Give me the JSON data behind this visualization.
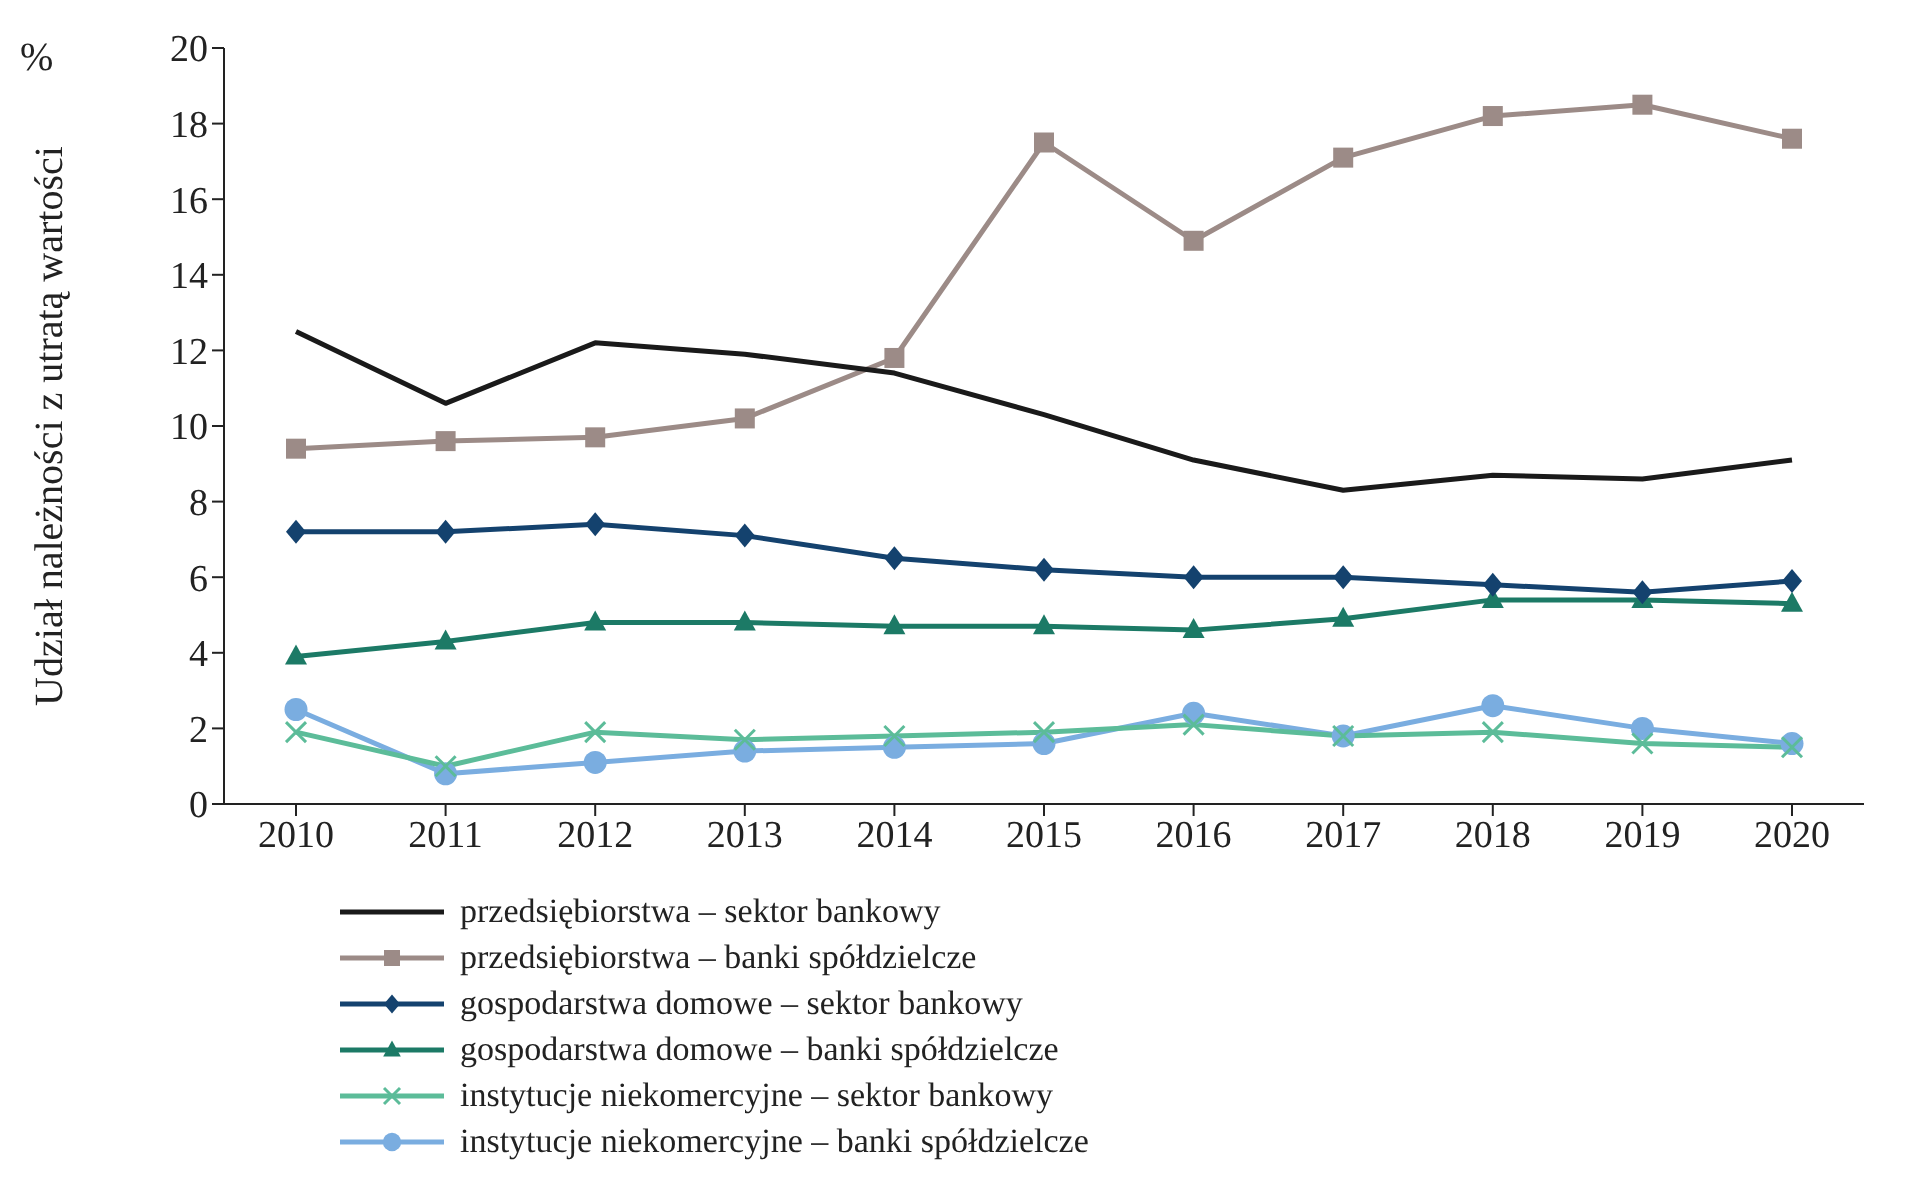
{
  "chart_data": {
    "type": "line",
    "ylabel": "Udział należności z utratą wartości",
    "annotations": [
      "%"
    ],
    "categories": [
      "2010",
      "2011",
      "2012",
      "2013",
      "2014",
      "2015",
      "2016",
      "2017",
      "2018",
      "2019",
      "2020"
    ],
    "ylim": [
      0,
      20
    ],
    "yticks": [
      0,
      2,
      4,
      6,
      8,
      10,
      12,
      14,
      16,
      18,
      20
    ],
    "grid": false,
    "legend": "bottom",
    "series": [
      {
        "name": "przedsiębiorstwa – sektor bankowy",
        "color": "#1a1a1a",
        "marker": "none",
        "values": [
          12.5,
          10.6,
          12.2,
          11.9,
          11.4,
          10.3,
          9.1,
          8.3,
          8.7,
          8.6,
          9.1
        ]
      },
      {
        "name": "przedsiębiorstwa – banki spółdzielcze",
        "color": "#9c8b87",
        "marker": "square",
        "values": [
          9.4,
          9.6,
          9.7,
          10.2,
          11.8,
          17.5,
          14.9,
          17.1,
          18.2,
          18.5,
          17.6
        ]
      },
      {
        "name": "gospodarstwa domowe – sektor bankowy",
        "color": "#14426e",
        "marker": "diamond",
        "values": [
          7.2,
          7.2,
          7.4,
          7.1,
          6.5,
          6.2,
          6.0,
          6.0,
          5.8,
          5.6,
          5.9
        ]
      },
      {
        "name": "gospodarstwa domowe – banki spółdzielcze",
        "color": "#1c7a66",
        "marker": "triangle",
        "values": [
          3.9,
          4.3,
          4.8,
          4.8,
          4.7,
          4.7,
          4.6,
          4.9,
          5.4,
          5.4,
          5.3
        ]
      },
      {
        "name": "instytucje niekomercyjne – sektor bankowy",
        "color": "#5cbc99",
        "marker": "cross",
        "values": [
          1.9,
          1.0,
          1.9,
          1.7,
          1.8,
          1.9,
          2.1,
          1.8,
          1.9,
          1.6,
          1.5
        ]
      },
      {
        "name": "instytucje niekomercyjne – banki spółdzielcze",
        "color": "#7aade0",
        "marker": "circle",
        "values": [
          2.5,
          0.8,
          1.1,
          1.4,
          1.5,
          1.6,
          2.4,
          1.8,
          2.6,
          2.0,
          1.6
        ]
      }
    ]
  }
}
